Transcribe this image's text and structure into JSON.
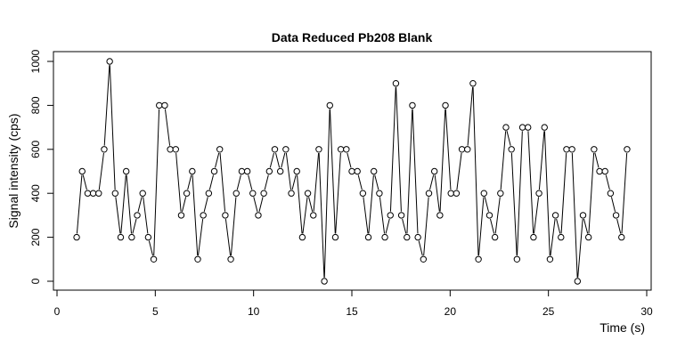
{
  "chart_data": {
    "type": "line",
    "title": "Data Reduced Pb208 Blank",
    "xlabel": "Time (s)",
    "ylabel": "Signal intensity (cps)",
    "xlim": [
      0,
      30
    ],
    "ylim": [
      0,
      1000
    ],
    "xticks": [
      0,
      5,
      10,
      15,
      20,
      25,
      30
    ],
    "yticks": [
      0,
      200,
      400,
      600,
      800,
      1000
    ],
    "grid": false,
    "marker": "open-circle",
    "line_color": "#000000",
    "series": [
      {
        "x": [
          1.0,
          1.28,
          1.56,
          1.84,
          2.12,
          2.4,
          2.68,
          2.96,
          3.24,
          3.52,
          3.8,
          4.08,
          4.36,
          4.64,
          4.92,
          5.2,
          5.48,
          5.76,
          6.04,
          6.32,
          6.6,
          6.88,
          7.16,
          7.44,
          7.72,
          8.0,
          8.28,
          8.56,
          8.84,
          9.12,
          9.4,
          9.68,
          9.96,
          10.24,
          10.52,
          10.8,
          11.08,
          11.36,
          11.64,
          11.92,
          12.2,
          12.48,
          12.76,
          13.04,
          13.32,
          13.6,
          13.88,
          14.16,
          14.44,
          14.72,
          15.0,
          15.28,
          15.56,
          15.84,
          16.12,
          16.4,
          16.68,
          16.96,
          17.24,
          17.52,
          17.8,
          18.08,
          18.36,
          18.64,
          18.92,
          19.2,
          19.48,
          19.76,
          20.04,
          20.32,
          20.6,
          20.88,
          21.16,
          21.44,
          21.72,
          22.0,
          22.28,
          22.56,
          22.84,
          23.12,
          23.4,
          23.68,
          23.96,
          24.24,
          24.52,
          24.8,
          25.08,
          25.36,
          25.64,
          25.92,
          26.2,
          26.48,
          26.76,
          27.04,
          27.32,
          27.6,
          27.88,
          28.16,
          28.44,
          28.72,
          29.0
        ],
        "y": [
          200,
          500,
          400,
          400,
          400,
          600,
          1000,
          400,
          200,
          500,
          200,
          300,
          400,
          200,
          100,
          800,
          800,
          600,
          600,
          300,
          400,
          500,
          100,
          300,
          400,
          500,
          600,
          300,
          100,
          400,
          500,
          500,
          400,
          300,
          400,
          500,
          600,
          500,
          600,
          400,
          500,
          200,
          400,
          300,
          600,
          0,
          800,
          200,
          600,
          600,
          500,
          500,
          400,
          200,
          500,
          400,
          200,
          300,
          900,
          300,
          200,
          800,
          200,
          100,
          400,
          500,
          300,
          800,
          400,
          400,
          600,
          600,
          900,
          100,
          400,
          300,
          200,
          400,
          700,
          600,
          100,
          700,
          700,
          200,
          400,
          700,
          100,
          300,
          200,
          600,
          600,
          0,
          300,
          200,
          600,
          500,
          500,
          400,
          300,
          200,
          600
        ]
      }
    ]
  }
}
